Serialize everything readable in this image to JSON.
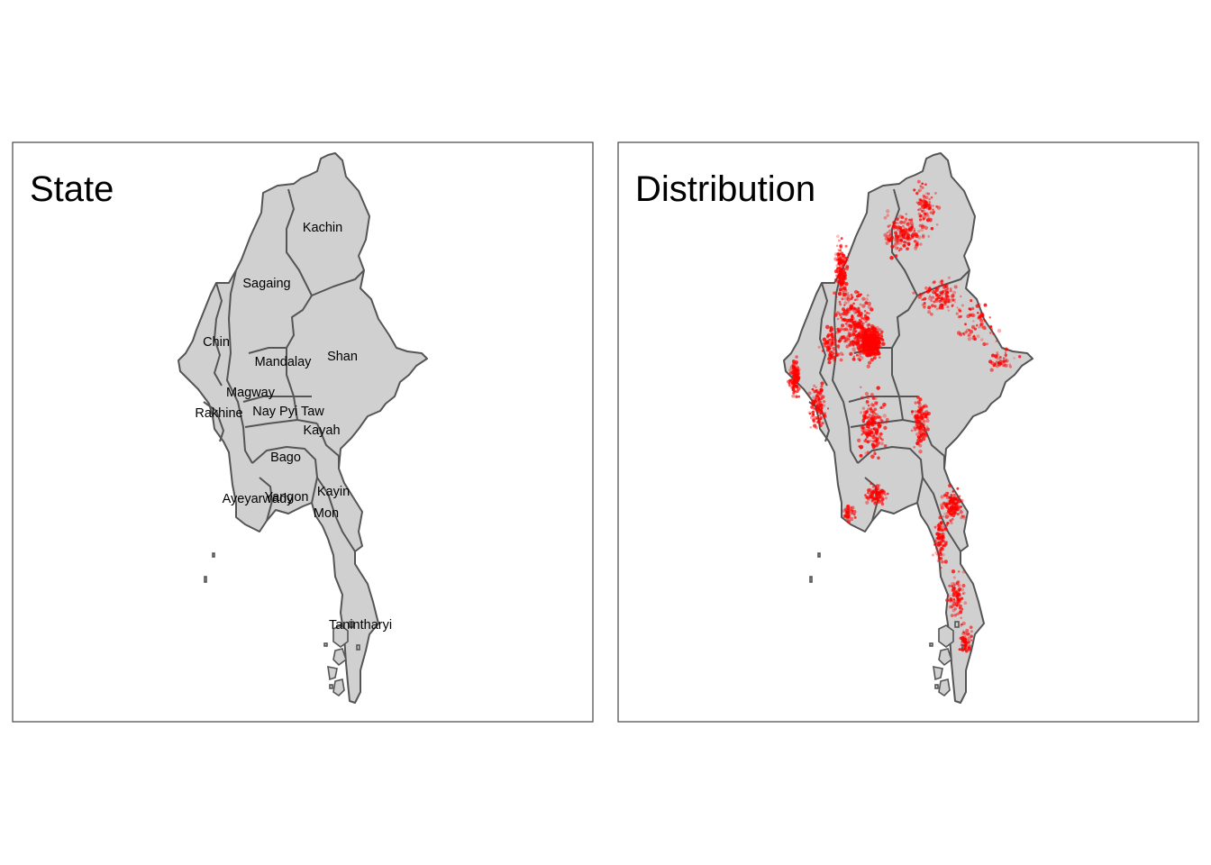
{
  "panels": {
    "state": {
      "title": "State"
    },
    "distribution": {
      "title": "Distribution"
    }
  },
  "regions": [
    {
      "id": "kachin",
      "name": "Kachin"
    },
    {
      "id": "sagaing",
      "name": "Sagaing"
    },
    {
      "id": "chin",
      "name": "Chin"
    },
    {
      "id": "shan",
      "name": "Shan"
    },
    {
      "id": "mandalay",
      "name": "Mandalay"
    },
    {
      "id": "magway",
      "name": "Magway"
    },
    {
      "id": "rakhine",
      "name": "Rakhine"
    },
    {
      "id": "naypyitaw",
      "name": "Nay Pyi Taw"
    },
    {
      "id": "kayah",
      "name": "Kayah"
    },
    {
      "id": "bago",
      "name": "Bago"
    },
    {
      "id": "ayeyarwady",
      "name": "Ayeyarwady"
    },
    {
      "id": "yangon",
      "name": "Yangon"
    },
    {
      "id": "kayin",
      "name": "Kayin"
    },
    {
      "id": "mon",
      "name": "Mon"
    },
    {
      "id": "tanintharyi",
      "name": "Tanintharyi"
    }
  ],
  "colors": {
    "land_fill": "#d0d0d0",
    "border": "#555555",
    "points": "#ff0000",
    "frame": "#444444"
  },
  "chart_data": {
    "type": "scatter",
    "panels": [
      "State",
      "Distribution"
    ],
    "layers": [
      "polygons",
      "text labels",
      "points"
    ],
    "point_color": "red",
    "labels": [
      "Kachin",
      "Sagaing",
      "Chin",
      "Shan",
      "Mandalay",
      "Magway",
      "Rakhine",
      "Nay Pyi Taw",
      "Kayah",
      "Bago",
      "Ayeyarwady",
      "Yangon",
      "Kayin",
      "Mon",
      "Tanintharyi"
    ]
  }
}
